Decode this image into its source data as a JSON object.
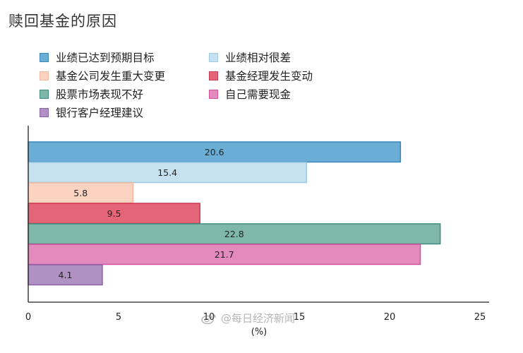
{
  "title": "赎回基金的原因",
  "watermark": "@每日经济新闻",
  "colors": {
    "axis": "#222222"
  },
  "chart_data": {
    "type": "bar",
    "orientation": "horizontal",
    "title": "赎回基金的原因",
    "xlabel": "(%)",
    "ylabel": "",
    "xlim": [
      0,
      25
    ],
    "xticks": [
      0,
      5,
      10,
      15,
      20,
      25
    ],
    "grid": false,
    "legend_position": "top",
    "categories": [
      "业绩已达到预期目标",
      "业绩相对很差",
      "基金公司发生重大变更",
      "基金经理发生变动",
      "股票市场表现不好",
      "自己需要现金",
      "银行客户经理建议"
    ],
    "values": [
      20.6,
      15.4,
      5.8,
      9.5,
      22.8,
      21.7,
      4.1
    ],
    "value_labels": [
      "20.6",
      "15.4",
      "5.8",
      "9.5",
      "22.8",
      "21.7",
      "4.1"
    ],
    "fill_colors": [
      "#6aaed6",
      "#c6e2f0",
      "#fbd3c0",
      "#e46478",
      "#7fb7ab",
      "#e48bbe",
      "#b190c4"
    ],
    "stroke_colors": [
      "#3a86bb",
      "#9ccbe3",
      "#f3b89d",
      "#c93a55",
      "#3f8d80",
      "#d44f9c",
      "#8a62a6"
    ]
  }
}
